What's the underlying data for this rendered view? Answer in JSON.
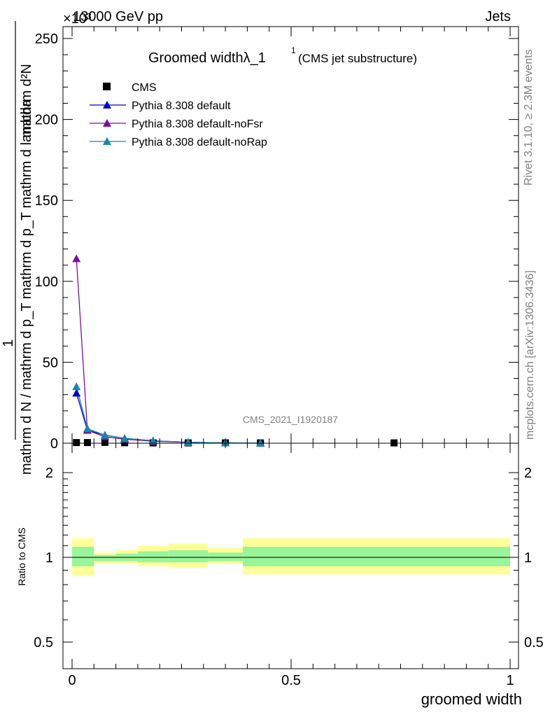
{
  "header": {
    "left": "13000 GeV pp",
    "right": "Jets",
    "exponent": "×10³"
  },
  "side": {
    "rivet": "Rivet 3.1.10, ≥ 2.3M events",
    "mcplots": "mcplots.cern.ch [arXiv:1306.3436]"
  },
  "colors": {
    "cms": "#000000",
    "default": "#0000cc",
    "noFsr": "#7b0fa0",
    "noRap": "#1b84a8",
    "band_inner": "#99f599",
    "band_outer": "#ffff99"
  },
  "chart_data": [
    {
      "type": "line",
      "title": "Groomed widthλ_1",
      "title_sup": "1",
      "subtitle": "(CMS jet substructure)",
      "watermark": "CMS_2021_I1920187",
      "ylabel_numerator": "mathrm d²N",
      "ylabel_fraction_top": "1",
      "ylabel_denominator": "mathrm d N / mathrm d p_T mathrm d p_T mathrm d lambda",
      "xlim": [
        0,
        1
      ],
      "ylim": [
        0,
        260
      ],
      "y_ticks": [
        0,
        50,
        100,
        150,
        200,
        250
      ],
      "y_scale_note": "×10³",
      "legend_position": "top-left",
      "series": [
        {
          "name": "CMS",
          "marker": "square",
          "x": [
            0.01,
            0.035,
            0.075,
            0.12,
            0.185,
            0.265,
            0.35,
            0.43,
            0.735
          ],
          "values": [
            0.4,
            0.4,
            0.5,
            0.3,
            0.2,
            0.2,
            0.2,
            0.2,
            0.2
          ]
        },
        {
          "name": "Pythia 8.308 default",
          "marker": "triangle",
          "x": [
            0.01,
            0.035,
            0.075,
            0.12,
            0.185,
            0.265,
            0.35,
            0.43
          ],
          "values": [
            31,
            8,
            5,
            3,
            1.5,
            0.6,
            0.2,
            0.1
          ]
        },
        {
          "name": "Pythia 8.308 default-noFsr",
          "marker": "triangle",
          "x": [
            0.01,
            0.035,
            0.075,
            0.12,
            0.185,
            0.265,
            0.35,
            0.43
          ],
          "values": [
            114,
            8,
            4,
            2.5,
            1.2,
            0.5,
            0.2,
            0.1
          ]
        },
        {
          "name": "Pythia 8.308 default-noRap",
          "marker": "triangle",
          "x": [
            0.01,
            0.035,
            0.075,
            0.12,
            0.185,
            0.265,
            0.35,
            0.43
          ],
          "values": [
            35,
            9,
            5,
            3,
            1.5,
            0.6,
            0.2,
            0.1
          ]
        }
      ]
    },
    {
      "type": "area",
      "ylabel": "Ratio to CMS",
      "xlabel": "groomed width",
      "xlim": [
        0,
        1
      ],
      "ylim": [
        0.4,
        2.3
      ],
      "y_scale": "log",
      "y_ticks": [
        0.5,
        1,
        2
      ],
      "x_ticks": [
        0,
        0.5,
        1
      ],
      "x_ticklabels": [
        "0",
        "0.5",
        "1"
      ],
      "bins": [
        0,
        0.05,
        0.1,
        0.15,
        0.22,
        0.31,
        0.39,
        1.0
      ],
      "inner_lo": [
        0.93,
        0.97,
        0.97,
        0.96,
        0.96,
        0.97,
        0.93
      ],
      "inner_hi": [
        1.09,
        1.02,
        1.03,
        1.05,
        1.06,
        1.04,
        1.09
      ],
      "outer_lo": [
        0.86,
        0.95,
        0.95,
        0.93,
        0.92,
        0.95,
        0.87
      ],
      "outer_hi": [
        1.17,
        1.04,
        1.06,
        1.1,
        1.12,
        1.08,
        1.17
      ]
    }
  ]
}
